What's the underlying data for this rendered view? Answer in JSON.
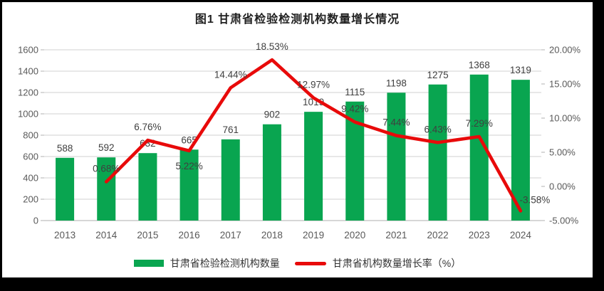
{
  "figure": {
    "title": "图1 甘肃省检验检测机构数量增长情况"
  },
  "legend": {
    "bar_label": "甘肃省检验检测机构数量",
    "line_label": "甘肃省机构数量增长率（%）"
  },
  "colors": {
    "bar": "#09a550",
    "line": "#e80a0a",
    "grid": "#d9d9d9",
    "axis_line": "#bfbfbf",
    "tick_text": "#595959",
    "label_text": "#3f3f3f",
    "frame": "#000000",
    "background": "#ffffff"
  },
  "chart_data": {
    "type": "bar+line",
    "title": "图1 甘肃省检验检测机构数量增长情况",
    "categories": [
      "2013",
      "2014",
      "2015",
      "2016",
      "2017",
      "2018",
      "2019",
      "2020",
      "2021",
      "2022",
      "2023",
      "2024"
    ],
    "series": [
      {
        "name": "甘肃省检验检测机构数量",
        "type": "bar",
        "axis": "left",
        "values": [
          588,
          592,
          632,
          665,
          761,
          902,
          1019,
          1115,
          1198,
          1275,
          1368,
          1319
        ],
        "labels": [
          "588",
          "592",
          "632",
          "665",
          "761",
          "902",
          "1019",
          "1115",
          "1198",
          "1275",
          "1368",
          "1319"
        ]
      },
      {
        "name": "甘肃省机构数量增长率（%）",
        "type": "line",
        "axis": "right",
        "values": [
          null,
          0.68,
          6.76,
          5.22,
          14.44,
          18.53,
          12.97,
          9.42,
          7.44,
          6.43,
          7.29,
          -3.58
        ],
        "labels": [
          null,
          "0.68%",
          "6.76%",
          "5.22%",
          "14.44%",
          "18.53%",
          "12.97%",
          "9.42%",
          "7.44%",
          "6.43%",
          "7.29%",
          "-3.58%"
        ]
      }
    ],
    "left_axis": {
      "min": 0,
      "max": 1600,
      "step": 200,
      "tick_labels": [
        "0",
        "200",
        "400",
        "600",
        "800",
        "1000",
        "1200",
        "1400",
        "1600"
      ]
    },
    "right_axis": {
      "min": -5,
      "max": 20,
      "step": 5,
      "tick_labels": [
        "-5.00%",
        "0.00%",
        "5.00%",
        "10.00%",
        "15.00%",
        "20.00%"
      ]
    },
    "grid": true,
    "legend_position": "bottom"
  }
}
